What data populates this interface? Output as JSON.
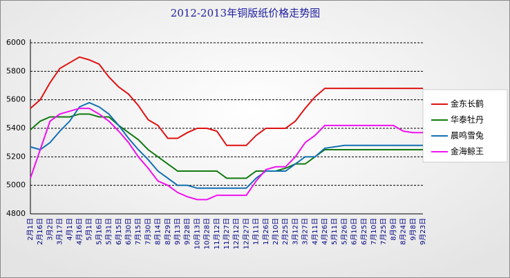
{
  "chart_data": {
    "type": "line",
    "title": "2012-2013年铜版纸价格走势图",
    "categories": [
      "2月1日",
      "2月16日",
      "3月2日",
      "3月17日",
      "4月1日",
      "4月16日",
      "5月1日",
      "5月16日",
      "5月31日",
      "6月15日",
      "6月30日",
      "7月15日",
      "7月30日",
      "8月14日",
      "8月29日",
      "9月13日",
      "9月28日",
      "10月13日",
      "10月28日",
      "11月12日",
      "11月27日",
      "12月12日",
      "12月27日",
      "1月11日",
      "1月26日",
      "2月10日",
      "2月25日",
      "3月12日",
      "3月27日",
      "4月11日",
      "4月26日",
      "5月11日",
      "5月26日",
      "6月10日",
      "6月25日",
      "7月10日",
      "7月25日",
      "8月9日",
      "8月24日",
      "9月8日",
      "9月23日"
    ],
    "series": [
      {
        "name": "金东长鹤",
        "color": "#e01010",
        "values": [
          5540,
          5600,
          5720,
          5820,
          5860,
          5900,
          5880,
          5850,
          5760,
          5690,
          5640,
          5560,
          5460,
          5420,
          5330,
          5330,
          5370,
          5400,
          5400,
          5380,
          5280,
          5280,
          5280,
          5350,
          5400,
          5400,
          5400,
          5450,
          5540,
          5620,
          5680,
          5680,
          5680,
          5680,
          5680,
          5680,
          5680,
          5680,
          5680,
          5680,
          5680
        ]
      },
      {
        "name": "华泰牡丹",
        "color": "#107a10",
        "values": [
          5390,
          5450,
          5480,
          5480,
          5480,
          5500,
          5500,
          5480,
          5480,
          5420,
          5370,
          5320,
          5250,
          5200,
          5150,
          5100,
          5100,
          5100,
          5100,
          5100,
          5050,
          5050,
          5050,
          5100,
          5100,
          5100,
          5120,
          5150,
          5150,
          5200,
          5250,
          5250,
          5250,
          5250,
          5250,
          5250,
          5250,
          5250,
          5250,
          5250,
          5250
        ]
      },
      {
        "name": "晨鸣雪兔",
        "color": "#1070b0",
        "values": [
          5270,
          5250,
          5300,
          5380,
          5450,
          5550,
          5580,
          5550,
          5500,
          5420,
          5330,
          5250,
          5180,
          5100,
          5050,
          5000,
          5000,
          4980,
          4980,
          4980,
          4980,
          4980,
          4980,
          5050,
          5100,
          5100,
          5100,
          5150,
          5200,
          5200,
          5260,
          5270,
          5280,
          5280,
          5280,
          5280,
          5280,
          5280,
          5280,
          5280,
          5280
        ]
      },
      {
        "name": "金海鲸王",
        "color": "#f010f0",
        "values": [
          5050,
          5250,
          5450,
          5500,
          5520,
          5540,
          5540,
          5500,
          5450,
          5380,
          5300,
          5200,
          5120,
          5030,
          5000,
          4950,
          4920,
          4900,
          4900,
          4930,
          4930,
          4930,
          4930,
          5030,
          5110,
          5130,
          5130,
          5200,
          5300,
          5350,
          5420,
          5420,
          5420,
          5420,
          5420,
          5420,
          5420,
          5420,
          5380,
          5370,
          5370
        ]
      }
    ],
    "ylim": [
      4800,
      6000
    ],
    "yticks": [
      4800,
      5000,
      5200,
      5400,
      5600,
      5800,
      6000
    ],
    "grid": true
  }
}
